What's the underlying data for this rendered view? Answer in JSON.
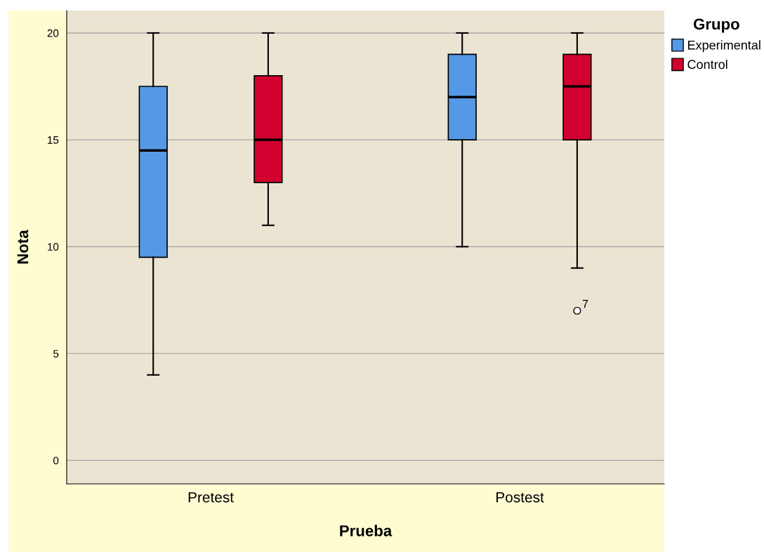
{
  "chart_data": {
    "type": "box",
    "xlabel": "Prueba",
    "ylabel": "Nota",
    "legend_title": "Grupo",
    "categories": [
      "Pretest",
      "Postest"
    ],
    "series": [
      {
        "name": "Experimental",
        "color": "#5599e6",
        "boxes": [
          {
            "low": 4,
            "q1": 9.5,
            "median": 14.5,
            "q3": 17.5,
            "high": 20
          },
          {
            "low": 10,
            "q1": 15,
            "median": 17,
            "q3": 19,
            "high": 20
          }
        ]
      },
      {
        "name": "Control",
        "color": "#d2002e",
        "boxes": [
          {
            "low": 11,
            "q1": 13,
            "median": 15,
            "q3": 18,
            "high": 20
          },
          {
            "low": 9,
            "q1": 15,
            "median": 17.5,
            "q3": 19,
            "high": 20,
            "outliers": [
              7
            ]
          }
        ]
      }
    ],
    "annotations": [
      "7"
    ],
    "ylim": [
      -1.1,
      21.05
    ],
    "yticks": [
      0,
      5,
      10,
      15,
      20
    ],
    "grid": "y",
    "legend": "top right"
  }
}
